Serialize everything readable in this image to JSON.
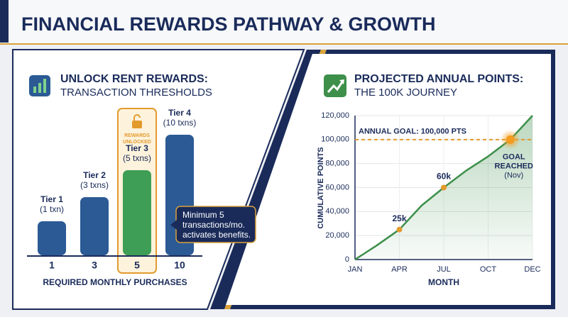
{
  "header": {
    "title": "FINANCIAL REWARDS PATHWAY & GROWTH"
  },
  "chart_data": [
    {
      "type": "bar",
      "title": "UNLOCK RENT REWARDS:",
      "subtitle": "TRANSACTION THRESHOLDS",
      "categories": [
        "1",
        "3",
        "5",
        "10"
      ],
      "tiers": [
        "Tier 1",
        "Tier 2",
        "Tier 3",
        "Tier 4"
      ],
      "tier_details": [
        "(1 txn)",
        "(3 txns)",
        "(5 txns)",
        "(10 txns)"
      ],
      "values": [
        48,
        82,
        120,
        170
      ],
      "ylim": [
        0,
        180
      ],
      "colors": [
        "#2b5a95",
        "#2b5a95",
        "#3f9e55",
        "#2b5a95"
      ],
      "highlight": 2,
      "highlight_label": [
        "REWARDS",
        "UNLOCKED"
      ],
      "callout": [
        "Minimum 5",
        "transactions/mo.",
        "activates benefits."
      ],
      "xlabel": "REQUIRED MONTHLY PURCHASES"
    },
    {
      "type": "line",
      "title": "PROJECTED ANNUAL POINTS:",
      "subtitle": "THE 100K JOURNEY",
      "x": [
        0,
        0.5,
        1,
        1.5,
        2,
        2.5,
        3,
        3.5,
        4
      ],
      "values": [
        0,
        12000,
        25000,
        45000,
        60000,
        74000,
        86000,
        100000,
        120000
      ],
      "color": "#3d8f4a",
      "xlim": [
        0,
        4
      ],
      "xticks": [
        {
          "value": 0,
          "label": "JAN"
        },
        {
          "value": 1,
          "label": "APR"
        },
        {
          "value": 2,
          "label": "JUL"
        },
        {
          "value": 3,
          "label": "OCT"
        },
        {
          "value": 4,
          "label": "DEC"
        }
      ],
      "ylim": [
        0,
        120000
      ],
      "yticks": [
        0,
        {
          "value": 20000,
          "label": "20,000"
        },
        {
          "value": 40000,
          "label": "40,000"
        },
        {
          "value": 60000,
          "label": "60,000"
        },
        {
          "value": 80000,
          "label": "80,000"
        },
        {
          "value": 100000,
          "label": "100,000"
        },
        {
          "value": 120000,
          "label": "120,000"
        }
      ],
      "grid": true,
      "xlabel": "MONTH",
      "ylabel": "CUMULATIVE POINTS",
      "goal": {
        "value": 100000,
        "label": "ANNUAL GOAL: 100,000 PTS"
      },
      "markers": [
        {
          "x": 1,
          "value": 25000,
          "label": "25k"
        },
        {
          "x": 2,
          "value": 60000,
          "label": "60k"
        },
        {
          "x": 3.5,
          "value": 100000,
          "label": "GOAL",
          "label2": "REACHED",
          "note": "(Nov)"
        }
      ]
    }
  ]
}
